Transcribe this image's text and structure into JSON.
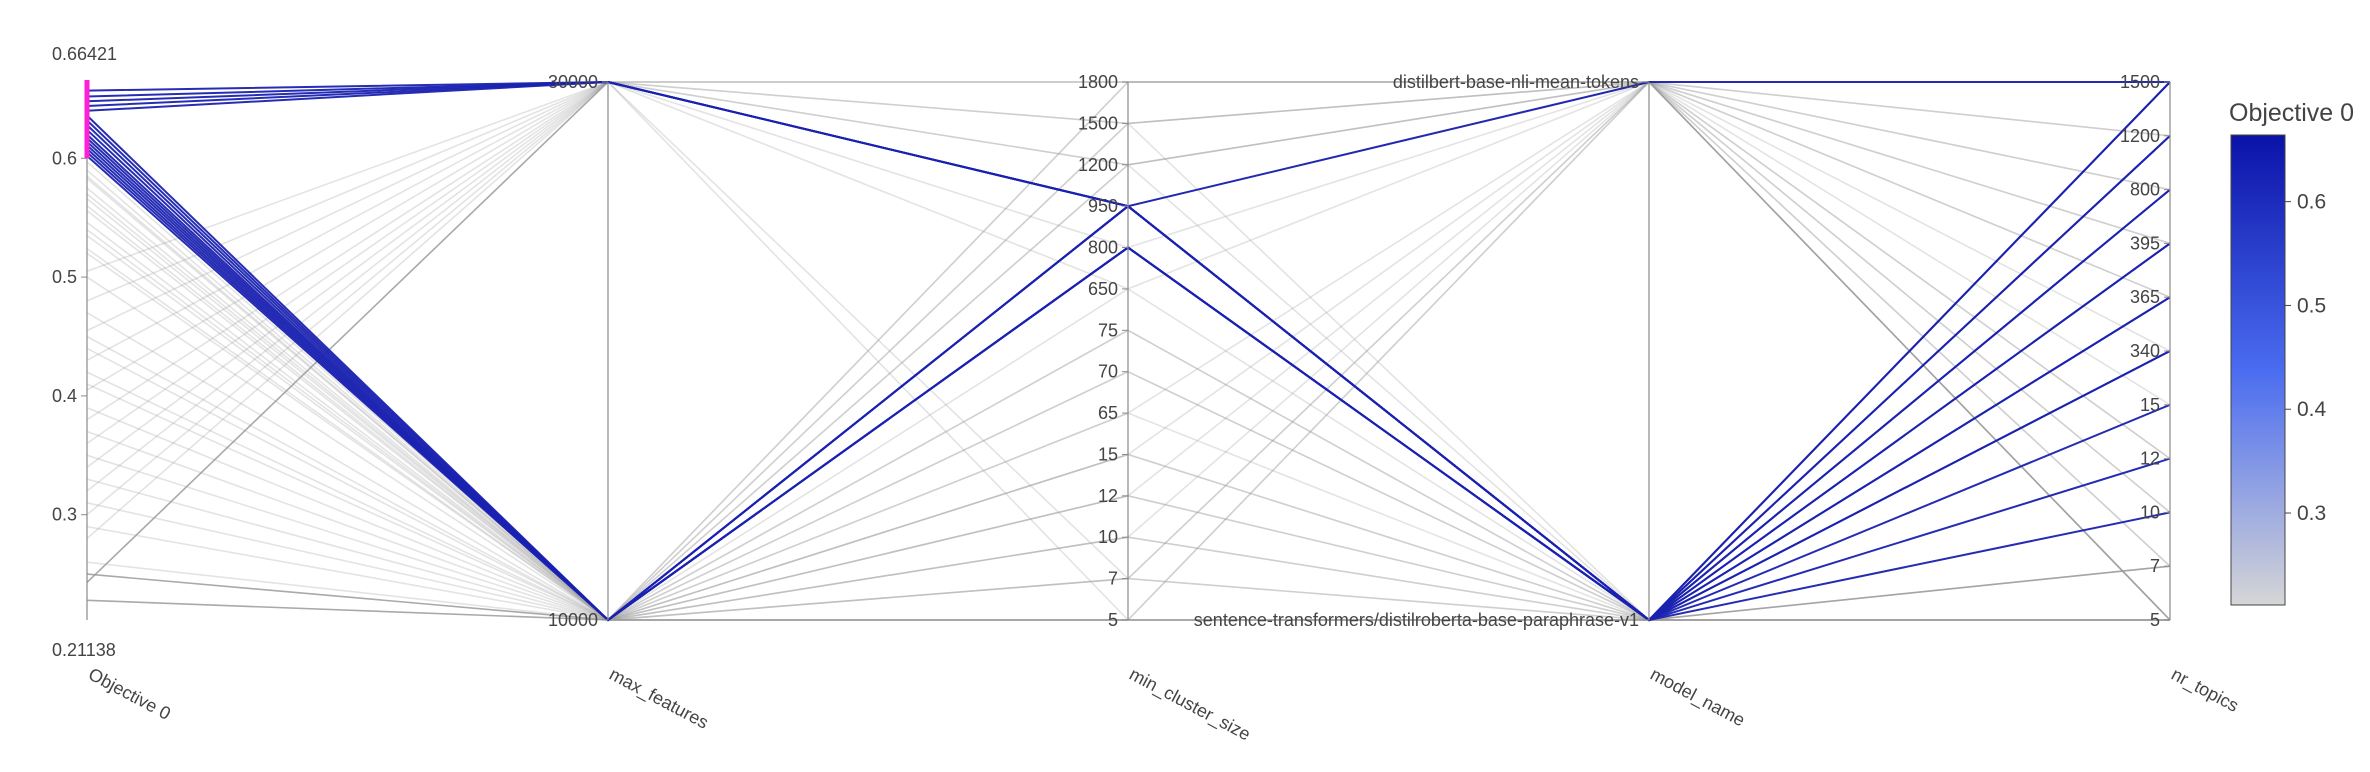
{
  "chart_data": {
    "type": "parallel_coordinates",
    "title": "",
    "axes": [
      {
        "name": "Objective 0",
        "kind": "continuous",
        "range": [
          0.21138,
          0.66421
        ],
        "range_labels": [
          "0.21138",
          "0.66421"
        ],
        "tick_values": [
          0.3,
          0.4,
          0.5,
          0.6
        ],
        "tick_labels": [
          "0.3",
          "0.4",
          "0.5",
          "0.6"
        ],
        "constraint_range": [
          0.6,
          0.66421
        ]
      },
      {
        "name": "max_features",
        "kind": "categorical",
        "categories": [
          "10000",
          "30000"
        ]
      },
      {
        "name": "min_cluster_size",
        "kind": "categorical",
        "categories": [
          "5",
          "7",
          "10",
          "12",
          "15",
          "65",
          "70",
          "75",
          "650",
          "800",
          "950",
          "1200",
          "1500",
          "1800"
        ]
      },
      {
        "name": "model_name",
        "kind": "categorical",
        "categories": [
          "sentence-transformers/distilroberta-base-paraphrase-v1",
          "distilbert-base-nli-mean-tokens"
        ]
      },
      {
        "name": "nr_topics",
        "kind": "categorical",
        "categories": [
          "5",
          "7",
          "10",
          "12",
          "15",
          "340",
          "365",
          "395",
          "800",
          "1200",
          "1500"
        ]
      }
    ],
    "colorbar": {
      "title": "Objective 0",
      "range": [
        0.21138,
        0.66421
      ],
      "tick_values": [
        0.3,
        0.4,
        0.5,
        0.6
      ],
      "tick_labels": [
        "0.3",
        "0.4",
        "0.5",
        "0.6"
      ],
      "colors": [
        "#d6d6d6",
        "#4a6cf0",
        "#0a12a8"
      ]
    },
    "selected_color": "#1a22b0",
    "unselected_color": "#9a9a9a",
    "constraint_color": "#ff1fd6",
    "lines": [
      [
        0.657,
        "30000",
        "950",
        "distilbert-base-nli-mean-tokens",
        "1500"
      ],
      [
        0.652,
        "30000",
        "950",
        "sentence-transformers/distilroberta-base-paraphrase-v1",
        "1500"
      ],
      [
        0.648,
        "30000",
        "950",
        "sentence-transformers/distilroberta-base-paraphrase-v1",
        "1200"
      ],
      [
        0.644,
        "30000",
        "950",
        "sentence-transformers/distilroberta-base-paraphrase-v1",
        "800"
      ],
      [
        0.64,
        "30000",
        "950",
        "sentence-transformers/distilroberta-base-paraphrase-v1",
        "395"
      ],
      [
        0.636,
        "10000",
        "950",
        "sentence-transformers/distilroberta-base-paraphrase-v1",
        "365"
      ],
      [
        0.632,
        "10000",
        "800",
        "sentence-transformers/distilroberta-base-paraphrase-v1",
        "340"
      ],
      [
        0.628,
        "10000",
        "800",
        "sentence-transformers/distilroberta-base-paraphrase-v1",
        "15"
      ],
      [
        0.624,
        "10000",
        "800",
        "sentence-transformers/distilroberta-base-paraphrase-v1",
        "12"
      ],
      [
        0.62,
        "10000",
        "950",
        "sentence-transformers/distilroberta-base-paraphrase-v1",
        "10"
      ],
      [
        0.617,
        "10000",
        "800",
        "sentence-transformers/distilroberta-base-paraphrase-v1",
        "1500"
      ],
      [
        0.614,
        "10000",
        "950",
        "sentence-transformers/distilroberta-base-paraphrase-v1",
        "1200"
      ],
      [
        0.611,
        "10000",
        "800",
        "sentence-transformers/distilroberta-base-paraphrase-v1",
        "800"
      ],
      [
        0.608,
        "10000",
        "950",
        "sentence-transformers/distilroberta-base-paraphrase-v1",
        "395"
      ],
      [
        0.605,
        "10000",
        "800",
        "sentence-transformers/distilroberta-base-paraphrase-v1",
        "365"
      ],
      [
        0.602,
        "10000",
        "950",
        "sentence-transformers/distilroberta-base-paraphrase-v1",
        "340"
      ],
      [
        0.597,
        "10000",
        "650",
        "sentence-transformers/distilroberta-base-paraphrase-v1",
        "7"
      ],
      [
        0.59,
        "10000",
        "75",
        "sentence-transformers/distilroberta-base-paraphrase-v1",
        "5"
      ],
      [
        0.583,
        "10000",
        "70",
        "sentence-transformers/distilroberta-base-paraphrase-v1",
        "5"
      ],
      [
        0.575,
        "10000",
        "65",
        "sentence-transformers/distilroberta-base-paraphrase-v1",
        "5"
      ],
      [
        0.566,
        "10000",
        "15",
        "sentence-transformers/distilroberta-base-paraphrase-v1",
        "5"
      ],
      [
        0.556,
        "10000",
        "12",
        "sentence-transformers/distilroberta-base-paraphrase-v1",
        "5"
      ],
      [
        0.546,
        "10000",
        "10",
        "sentence-transformers/distilroberta-base-paraphrase-v1",
        "5"
      ],
      [
        0.535,
        "10000",
        "7",
        "sentence-transformers/distilroberta-base-paraphrase-v1",
        "5"
      ],
      [
        0.524,
        "10000",
        "5",
        "sentence-transformers/distilroberta-base-paraphrase-v1",
        "5"
      ],
      [
        0.243,
        "30000",
        "950",
        "distilbert-base-nli-mean-tokens",
        "5"
      ],
      [
        0.228,
        "10000",
        "5",
        "sentence-transformers/distilroberta-base-paraphrase-v1",
        "5"
      ],
      [
        0.505,
        "30000",
        "1800",
        "distilbert-base-nli-mean-tokens",
        "1500"
      ],
      [
        0.48,
        "30000",
        "1500",
        "distilbert-base-nli-mean-tokens",
        "1200"
      ],
      [
        0.455,
        "30000",
        "1200",
        "distilbert-base-nli-mean-tokens",
        "800"
      ],
      [
        0.43,
        "30000",
        "800",
        "distilbert-base-nli-mean-tokens",
        "395"
      ],
      [
        0.405,
        "30000",
        "650",
        "distilbert-base-nli-mean-tokens",
        "365"
      ],
      [
        0.38,
        "30000",
        "1800",
        "distilbert-base-nli-mean-tokens",
        "340"
      ],
      [
        0.36,
        "30000",
        "5",
        "distilbert-base-nli-mean-tokens",
        "15"
      ],
      [
        0.34,
        "30000",
        "1500",
        "distilbert-base-nli-mean-tokens",
        "12"
      ],
      [
        0.32,
        "30000",
        "1200",
        "distilbert-base-nli-mean-tokens",
        "10"
      ],
      [
        0.3,
        "30000",
        "7",
        "distilbert-base-nli-mean-tokens",
        "7"
      ],
      [
        0.28,
        "30000",
        "1800",
        "distilbert-base-nli-mean-tokens",
        "5"
      ],
      [
        0.56,
        "10000",
        "1800",
        "distilbert-base-nli-mean-tokens",
        "1500"
      ],
      [
        0.54,
        "10000",
        "1500",
        "distilbert-base-nli-mean-tokens",
        "1200"
      ],
      [
        0.52,
        "10000",
        "1200",
        "distilbert-base-nli-mean-tokens",
        "800"
      ],
      [
        0.47,
        "10000",
        "65",
        "distilbert-base-nli-mean-tokens",
        "395"
      ],
      [
        0.44,
        "10000",
        "15",
        "distilbert-base-nli-mean-tokens",
        "365"
      ],
      [
        0.41,
        "10000",
        "10",
        "distilbert-base-nli-mean-tokens",
        "12"
      ],
      [
        0.39,
        "10000",
        "12",
        "distilbert-base-nli-mean-tokens",
        "10"
      ],
      [
        0.35,
        "10000",
        "7",
        "distilbert-base-nli-mean-tokens",
        "7"
      ],
      [
        0.31,
        "10000",
        "5",
        "distilbert-base-nli-mean-tokens",
        "5"
      ],
      [
        0.26,
        "10000",
        "1800",
        "distilbert-base-nli-mean-tokens",
        "1500"
      ],
      [
        0.585,
        "10000",
        "1500",
        "sentence-transformers/distilroberta-base-paraphrase-v1",
        "1200"
      ],
      [
        0.57,
        "10000",
        "1200",
        "sentence-transformers/distilroberta-base-paraphrase-v1",
        "800"
      ],
      [
        0.5,
        "10000",
        "75",
        "sentence-transformers/distilroberta-base-paraphrase-v1",
        "395"
      ],
      [
        0.45,
        "10000",
        "70",
        "sentence-transformers/distilroberta-base-paraphrase-v1",
        "365"
      ],
      [
        0.42,
        "10000",
        "15",
        "sentence-transformers/distilroberta-base-paraphrase-v1",
        "340"
      ],
      [
        0.37,
        "10000",
        "12",
        "sentence-transformers/distilroberta-base-paraphrase-v1",
        "15"
      ],
      [
        0.33,
        "10000",
        "10",
        "sentence-transformers/distilroberta-base-paraphrase-v1",
        "12"
      ],
      [
        0.29,
        "10000",
        "7",
        "sentence-transformers/distilroberta-base-paraphrase-v1",
        "10"
      ],
      [
        0.25,
        "10000",
        "5",
        "sentence-transformers/distilroberta-base-paraphrase-v1",
        "7"
      ]
    ]
  }
}
